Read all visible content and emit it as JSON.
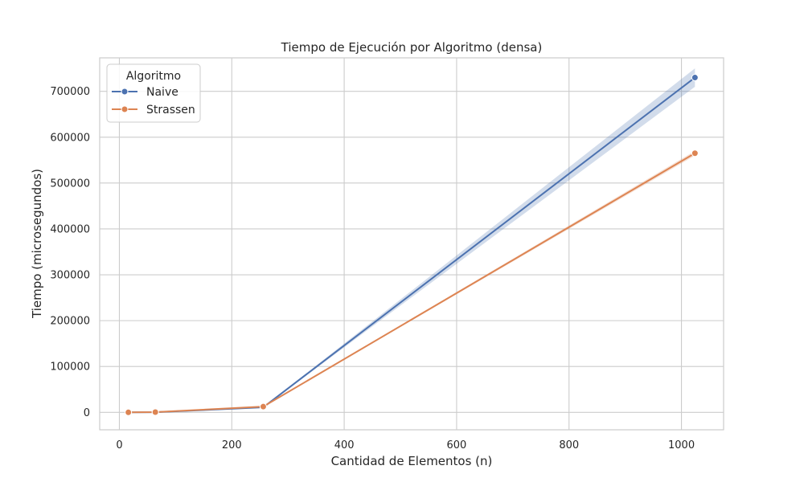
{
  "chart_data": {
    "type": "line",
    "title": "Tiempo de Ejecución por Algoritmo (densa)",
    "xlabel": "Cantidad de Elementos (n)",
    "ylabel": "Tiempo (microsegundos)",
    "xlim": [
      -35,
      1075
    ],
    "ylim": [
      -38000,
      773000
    ],
    "xticks": [
      0,
      200,
      400,
      600,
      800,
      1000
    ],
    "yticks": [
      0,
      100000,
      200000,
      300000,
      400000,
      500000,
      600000,
      700000
    ],
    "grid": true,
    "legend": {
      "title": "Algoritmo",
      "position": "top-left"
    },
    "series": [
      {
        "name": "Naive",
        "color": "#4c72b0",
        "points": [
          {
            "x": 16,
            "y": 0,
            "lo": 0,
            "hi": 0
          },
          {
            "x": 64,
            "y": 300,
            "lo": 200,
            "hi": 400
          },
          {
            "x": 256,
            "y": 11000,
            "lo": 10500,
            "hi": 11500
          },
          {
            "x": 1024,
            "y": 730000,
            "lo": 710000,
            "hi": 750000
          }
        ]
      },
      {
        "name": "Strassen",
        "color": "#dd8452",
        "points": [
          {
            "x": 16,
            "y": 0,
            "lo": 0,
            "hi": 0
          },
          {
            "x": 64,
            "y": 500,
            "lo": 400,
            "hi": 600
          },
          {
            "x": 256,
            "y": 12500,
            "lo": 12000,
            "hi": 13000
          },
          {
            "x": 1024,
            "y": 565000,
            "lo": 560000,
            "hi": 570000
          }
        ]
      }
    ]
  }
}
